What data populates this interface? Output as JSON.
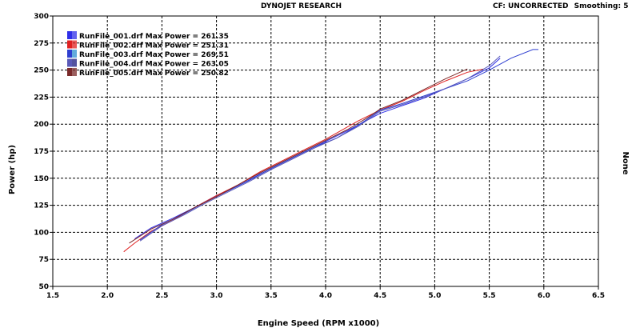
{
  "header": {
    "title": "DYNOJET RESEARCH",
    "correction": "CF: UNCORRECTED",
    "smoothing": "Smoothing: 5"
  },
  "chart_data": {
    "type": "line",
    "title": "DYNOJET RESEARCH",
    "xlabel": "Engine Speed (RPM x1000)",
    "ylabel": "Power (hp)",
    "y2label": "None",
    "xlim": [
      1.5,
      6.5
    ],
    "ylim": [
      50,
      300
    ],
    "xticks": [
      "1.5",
      "2.0",
      "2.5",
      "3.0",
      "3.5",
      "4.0",
      "4.5",
      "5.0",
      "5.5",
      "6.0",
      "6.5"
    ],
    "yticks": [
      "300",
      "275",
      "250",
      "225",
      "200",
      "175",
      "150",
      "125",
      "100",
      "75",
      "50"
    ],
    "grid": true,
    "legend_position": "top-left",
    "legend": [
      "RunFile_001.drf Max Power = 261.35",
      "RunFile_002.drf Max Power = 251.31",
      "RunFile_003.drf Max Power = 269.51",
      "RunFile_004.drf Max Power = 263.05",
      "RunFile_005.drf Max Power = 250.82"
    ],
    "series": [
      {
        "name": "RunFile_001.drf",
        "color": "#2f2fe8",
        "x": [
          2.25,
          2.4,
          2.6,
          2.8,
          3.0,
          3.2,
          3.4,
          3.6,
          3.8,
          4.0,
          4.2,
          4.35,
          4.5,
          4.7,
          4.9,
          5.1,
          5.3,
          5.5,
          5.6
        ],
        "y": [
          94,
          104,
          113,
          123,
          134,
          143,
          154,
          164,
          174,
          184,
          194,
          202,
          210,
          217,
          224,
          233,
          242,
          252,
          261
        ]
      },
      {
        "name": "RunFile_002.drf",
        "color": "#e02020",
        "x": [
          2.15,
          2.25,
          2.4,
          2.6,
          2.8,
          3.0,
          3.2,
          3.4,
          3.6,
          3.8,
          4.0,
          4.3,
          4.5,
          4.7,
          4.9,
          5.1,
          5.3,
          5.45
        ],
        "y": [
          82,
          90,
          101,
          111,
          123,
          134,
          144,
          156,
          166,
          176,
          186,
          203,
          213,
          221,
          231,
          240,
          248,
          251
        ]
      },
      {
        "name": "RunFile_003.drf",
        "color": "#2f3fd0",
        "x": [
          2.3,
          2.5,
          2.7,
          2.9,
          3.1,
          3.3,
          3.5,
          3.7,
          3.9,
          4.1,
          4.3,
          4.5,
          4.7,
          4.9,
          5.1,
          5.3,
          5.5,
          5.7,
          5.9,
          5.95
        ],
        "y": [
          93,
          107,
          117,
          128,
          138,
          148,
          159,
          169,
          179,
          187,
          199,
          213,
          219,
          226,
          233,
          240,
          250,
          261,
          269,
          269
        ]
      },
      {
        "name": "RunFile_004.drf",
        "color": "#5a5ab8",
        "x": [
          2.3,
          2.5,
          2.7,
          2.9,
          3.1,
          3.3,
          3.5,
          3.7,
          3.9,
          4.1,
          4.3,
          4.5,
          4.7,
          4.9,
          5.1,
          5.3,
          5.5,
          5.6
        ],
        "y": [
          92,
          106,
          116,
          127,
          137,
          147,
          158,
          168,
          178,
          187,
          198,
          212,
          218,
          225,
          233,
          242,
          254,
          263
        ]
      },
      {
        "name": "RunFile_005.drf",
        "color": "#7a2a2a",
        "x": [
          2.2,
          2.4,
          2.6,
          2.8,
          3.0,
          3.2,
          3.4,
          3.6,
          3.8,
          4.0,
          4.2,
          4.4,
          4.5,
          4.7,
          4.9,
          5.1,
          5.3
        ],
        "y": [
          90,
          103,
          112,
          123,
          133,
          144,
          155,
          165,
          175,
          185,
          195,
          207,
          214,
          222,
          232,
          242,
          251
        ]
      }
    ]
  }
}
